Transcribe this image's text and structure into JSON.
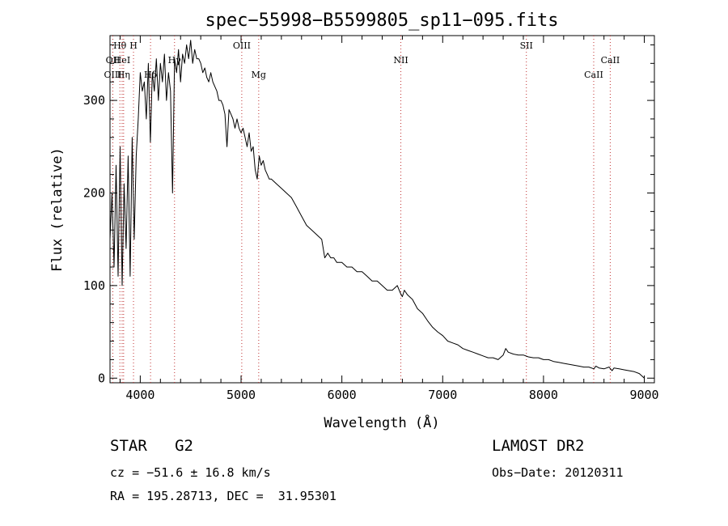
{
  "chart_data": {
    "type": "line",
    "title": "spec−55998−B5599805_sp11−095.fits",
    "xlabel": "Wavelength (Å)",
    "ylabel": "Flux (relative)",
    "xlim": [
      3700,
      9100
    ],
    "ylim": [
      -5,
      370
    ],
    "xticks": [
      4000,
      5000,
      6000,
      7000,
      8000,
      9000
    ],
    "yticks": [
      0,
      100,
      200,
      300
    ],
    "line_color": "#000000",
    "marker_color": "#c03030",
    "series": [
      {
        "x": [
          3700,
          3720,
          3740,
          3760,
          3780,
          3800,
          3820,
          3840,
          3860,
          3880,
          3900,
          3920,
          3940,
          3960,
          3980,
          4000,
          4020,
          4040,
          4060,
          4080,
          4100,
          4120,
          4140,
          4160,
          4180,
          4200,
          4220,
          4240,
          4260,
          4280,
          4300,
          4320,
          4340,
          4360,
          4380,
          4400,
          4420,
          4440,
          4460,
          4480,
          4500,
          4520,
          4540,
          4560,
          4580,
          4600,
          4620,
          4640,
          4660,
          4680,
          4700,
          4720,
          4740,
          4760,
          4780,
          4800,
          4820,
          4840,
          4860,
          4880,
          4900,
          4920,
          4940,
          4960,
          4980,
          5000,
          5020,
          5040,
          5060,
          5080,
          5100,
          5120,
          5140,
          5160,
          5180,
          5200,
          5220,
          5240,
          5260,
          5280,
          5300,
          5350,
          5400,
          5450,
          5500,
          5550,
          5600,
          5650,
          5700,
          5750,
          5800,
          5830,
          5860,
          5890,
          5920,
          5950,
          6000,
          6050,
          6100,
          6150,
          6200,
          6250,
          6300,
          6350,
          6400,
          6450,
          6500,
          6550,
          6580,
          6600,
          6620,
          6650,
          6700,
          6750,
          6800,
          6850,
          6900,
          6950,
          7000,
          7050,
          7100,
          7150,
          7200,
          7250,
          7300,
          7350,
          7400,
          7450,
          7500,
          7550,
          7600,
          7625,
          7650,
          7700,
          7750,
          7800,
          7850,
          7900,
          7950,
          8000,
          8050,
          8100,
          8150,
          8200,
          8250,
          8300,
          8350,
          8400,
          8450,
          8500,
          8520,
          8550,
          8600,
          8650,
          8680,
          8700,
          8750,
          8800,
          8850,
          8900,
          8950,
          9000
        ],
        "y": [
          150,
          200,
          120,
          230,
          110,
          250,
          100,
          210,
          140,
          240,
          110,
          260,
          150,
          240,
          280,
          330,
          310,
          320,
          280,
          340,
          255,
          330,
          310,
          345,
          300,
          340,
          320,
          350,
          300,
          330,
          310,
          200,
          345,
          330,
          355,
          320,
          350,
          340,
          360,
          345,
          365,
          340,
          355,
          345,
          345,
          340,
          330,
          335,
          325,
          320,
          330,
          320,
          315,
          310,
          300,
          300,
          295,
          285,
          250,
          290,
          285,
          280,
          270,
          280,
          270,
          265,
          270,
          260,
          250,
          265,
          245,
          250,
          225,
          215,
          240,
          230,
          235,
          225,
          220,
          215,
          215,
          210,
          205,
          200,
          195,
          185,
          175,
          165,
          160,
          155,
          150,
          130,
          135,
          130,
          130,
          125,
          125,
          120,
          120,
          115,
          115,
          110,
          105,
          105,
          100,
          95,
          95,
          100,
          92,
          88,
          95,
          90,
          85,
          75,
          70,
          62,
          55,
          50,
          46,
          40,
          38,
          36,
          32,
          30,
          28,
          26,
          24,
          22,
          22,
          20,
          25,
          32,
          28,
          26,
          25,
          25,
          23,
          22,
          22,
          20,
          20,
          18,
          17,
          16,
          15,
          14,
          13,
          12,
          12,
          10,
          13,
          11,
          10,
          12,
          8,
          11,
          10,
          9,
          8,
          7,
          5,
          0
        ]
      }
    ],
    "line_markers": [
      {
        "label": "Hθ",
        "x": 3798,
        "row": 0
      },
      {
        "label": "OII",
        "x": 3728,
        "row": 1
      },
      {
        "label": "OIII",
        "x": 3728,
        "row": 2
      },
      {
        "label": "HeI",
        "x": 3820,
        "row": 1
      },
      {
        "label": "Hη",
        "x": 3835,
        "row": 2
      },
      {
        "label": "H",
        "x": 3933,
        "row": 0
      },
      {
        "label": "Hδ",
        "x": 4102,
        "row": 2
      },
      {
        "label": "Hγ",
        "x": 4340,
        "row": 1
      },
      {
        "label": "OIII",
        "x": 5007,
        "row": 0
      },
      {
        "label": "Mg",
        "x": 5175,
        "row": 2
      },
      {
        "label": "NII",
        "x": 6585,
        "row": 1
      },
      {
        "label": "SII",
        "x": 7830,
        "row": 0
      },
      {
        "label": "CaII",
        "x": 8662,
        "row": 1
      },
      {
        "label": "CaII",
        "x": 8498,
        "row": 2
      }
    ]
  },
  "info": {
    "class": "STAR   G2",
    "survey": "LAMOST DR2",
    "cz": "cz = −51.6 ± 16.8 km/s",
    "obs_date": "Obs−Date: 20120311",
    "coords": "RA = 195.28713, DEC =  31.95301"
  }
}
